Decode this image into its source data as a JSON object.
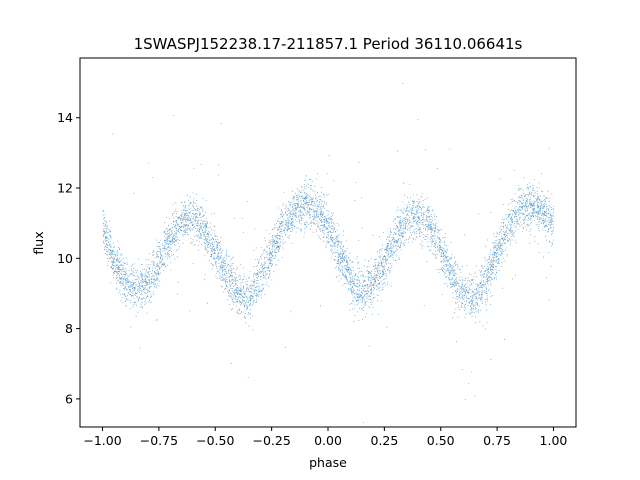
{
  "chart_data": {
    "type": "scatter",
    "title": "1SWASPJ152238.17-211857.1 Period 36110.06641s",
    "xlabel": "phase",
    "ylabel": "flux",
    "xlim": [
      -1.1,
      1.1
    ],
    "ylim": [
      5.2,
      15.7
    ],
    "x_ticks": [
      -1.0,
      -0.75,
      -0.5,
      -0.25,
      0.0,
      0.25,
      0.5,
      0.75,
      1.0
    ],
    "x_tick_labels": [
      "−1.00",
      "−0.75",
      "−0.50",
      "−0.25",
      "0.00",
      "0.25",
      "0.50",
      "0.75",
      "1.00"
    ],
    "y_ticks": [
      6,
      8,
      10,
      12,
      14
    ],
    "y_tick_labels": [
      "6",
      "8",
      "10",
      "12",
      "14"
    ],
    "grid": false,
    "legend": "none",
    "marker_color": "#1f77b4",
    "series": [
      {
        "phase": [
          -1.0,
          -0.95,
          -0.9,
          -0.85,
          -0.8,
          -0.75,
          -0.7,
          -0.65,
          -0.6,
          -0.55,
          -0.5,
          -0.45,
          -0.4,
          -0.35,
          -0.3,
          -0.25,
          -0.2,
          -0.15,
          -0.1,
          -0.05,
          0.0,
          0.05,
          0.1,
          0.15,
          0.2,
          0.25,
          0.3,
          0.35,
          0.4,
          0.45,
          0.5,
          0.55,
          0.6,
          0.65,
          0.7,
          0.75,
          0.8,
          0.85,
          0.9,
          0.95,
          1.0
        ],
        "flux": [
          10.8,
          10.0,
          9.4,
          9.1,
          9.3,
          9.9,
          10.6,
          11.1,
          11.2,
          10.9,
          10.2,
          9.5,
          9.0,
          8.9,
          9.4,
          10.2,
          10.9,
          11.4,
          11.5,
          11.4,
          10.9,
          10.1,
          9.4,
          9.0,
          9.3,
          9.9,
          10.6,
          11.1,
          11.2,
          10.9,
          10.2,
          9.5,
          9.0,
          8.9,
          9.4,
          10.2,
          10.9,
          11.4,
          11.5,
          11.4,
          10.9
        ]
      }
    ]
  }
}
